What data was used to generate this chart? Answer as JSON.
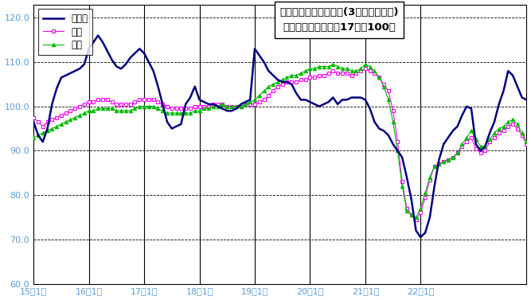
{
  "title_line1": "鉱工業生産指数の推移(3ヶ月移動平均)",
  "title_line2": "（季節調整済、平成17年＝100）",
  "ylim": [
    60.0,
    123.0
  ],
  "yticks": [
    60.0,
    70.0,
    80.0,
    90.0,
    100.0,
    110.0,
    120.0
  ],
  "legend_labels": [
    "鳥取県",
    "中国",
    "全国"
  ],
  "tottori_color": "#000080",
  "chugoku_color": "#ff00ff",
  "zenkoku_color": "#00bb00",
  "background": "#ffffff",
  "tottori": [
    96.5,
    93.5,
    92.0,
    95.0,
    100.5,
    104.0,
    106.5,
    107.0,
    107.5,
    108.0,
    108.5,
    109.5,
    113.0,
    114.5,
    116.0,
    114.5,
    112.5,
    110.5,
    109.0,
    108.5,
    109.5,
    111.0,
    112.0,
    113.0,
    112.0,
    110.0,
    108.0,
    104.5,
    100.5,
    96.5,
    95.0,
    95.5,
    96.0,
    100.5,
    102.0,
    104.5,
    101.5,
    101.0,
    100.5,
    100.5,
    100.0,
    99.5,
    99.0,
    99.0,
    99.5,
    100.5,
    101.0,
    101.5,
    113.0,
    111.5,
    110.0,
    108.0,
    107.0,
    106.0,
    105.5,
    105.5,
    105.0,
    103.0,
    101.5,
    101.5,
    101.0,
    100.5,
    100.0,
    100.5,
    101.0,
    102.0,
    100.5,
    101.5,
    101.5,
    102.0,
    102.0,
    102.0,
    101.5,
    99.5,
    96.5,
    95.0,
    94.5,
    93.5,
    91.5,
    90.0,
    88.5,
    84.0,
    79.0,
    72.0,
    70.5,
    71.5,
    75.0,
    82.0,
    88.0,
    91.5,
    93.0,
    94.5,
    95.5,
    98.0,
    100.0,
    99.5,
    91.5,
    90.0,
    91.0,
    94.0,
    96.5,
    100.5,
    103.5,
    108.0,
    107.0,
    104.5,
    102.0,
    101.5
  ],
  "chugoku": [
    97.5,
    96.5,
    95.5,
    96.5,
    97.0,
    97.5,
    98.0,
    98.5,
    99.0,
    99.5,
    100.0,
    100.5,
    101.0,
    101.0,
    101.5,
    101.5,
    101.5,
    101.0,
    100.5,
    100.5,
    100.5,
    100.5,
    101.0,
    101.5,
    101.5,
    101.5,
    101.5,
    101.0,
    100.5,
    100.0,
    99.5,
    99.5,
    99.5,
    99.5,
    99.5,
    100.0,
    100.0,
    100.0,
    100.0,
    100.5,
    100.5,
    100.5,
    100.0,
    100.0,
    100.0,
    100.0,
    100.5,
    100.5,
    100.5,
    101.0,
    101.5,
    102.5,
    103.5,
    104.5,
    105.0,
    105.5,
    105.5,
    105.5,
    106.0,
    106.0,
    106.5,
    106.5,
    107.0,
    107.0,
    107.5,
    108.0,
    107.5,
    107.5,
    107.5,
    107.0,
    107.5,
    108.0,
    108.5,
    108.0,
    107.5,
    106.5,
    105.0,
    103.5,
    99.0,
    92.0,
    83.0,
    77.0,
    75.5,
    74.5,
    76.0,
    79.5,
    83.5,
    86.5,
    87.0,
    87.5,
    88.0,
    88.5,
    89.5,
    91.0,
    92.0,
    93.0,
    90.5,
    89.5,
    90.0,
    92.0,
    93.0,
    94.0,
    94.5,
    95.5,
    96.0,
    95.0,
    93.5,
    91.5
  ],
  "zenkoku": [
    93.0,
    93.5,
    94.0,
    94.5,
    95.0,
    95.5,
    96.0,
    96.5,
    97.0,
    97.5,
    98.0,
    98.5,
    99.0,
    99.0,
    99.5,
    99.5,
    99.5,
    99.5,
    99.0,
    99.0,
    99.0,
    99.0,
    99.5,
    100.0,
    100.0,
    100.0,
    100.0,
    99.5,
    99.0,
    98.5,
    98.5,
    98.5,
    98.5,
    98.5,
    98.5,
    99.0,
    99.0,
    99.5,
    99.5,
    100.0,
    100.0,
    100.5,
    100.0,
    100.0,
    100.0,
    100.0,
    100.5,
    101.0,
    101.5,
    102.5,
    103.5,
    104.5,
    105.0,
    105.5,
    106.0,
    106.5,
    107.0,
    107.0,
    107.5,
    108.0,
    108.5,
    108.5,
    109.0,
    109.0,
    109.0,
    109.5,
    109.0,
    108.5,
    108.5,
    108.0,
    108.0,
    108.5,
    109.5,
    109.0,
    108.0,
    106.5,
    104.5,
    101.5,
    96.5,
    90.0,
    82.0,
    76.5,
    75.5,
    75.0,
    77.0,
    80.5,
    84.0,
    86.5,
    87.0,
    87.5,
    88.0,
    88.5,
    89.5,
    91.5,
    93.0,
    94.5,
    92.5,
    91.0,
    91.0,
    92.5,
    94.0,
    95.0,
    95.5,
    96.5,
    97.0,
    96.0,
    94.0,
    92.0
  ],
  "xtick_labels": [
    "15年1月",
    "16年1月",
    "17年1月",
    "18年1月",
    "19年1月",
    "20年1月",
    "21年1月",
    "22年1月"
  ],
  "xtick_positions": [
    0,
    12,
    24,
    36,
    48,
    60,
    72,
    84
  ],
  "ylabel_color": "#5b9bd5",
  "xlabel_color": "#5b9bd5",
  "tick_label_color": "#5b9bd5",
  "grid_color": "#000000",
  "spine_color": "#000000"
}
